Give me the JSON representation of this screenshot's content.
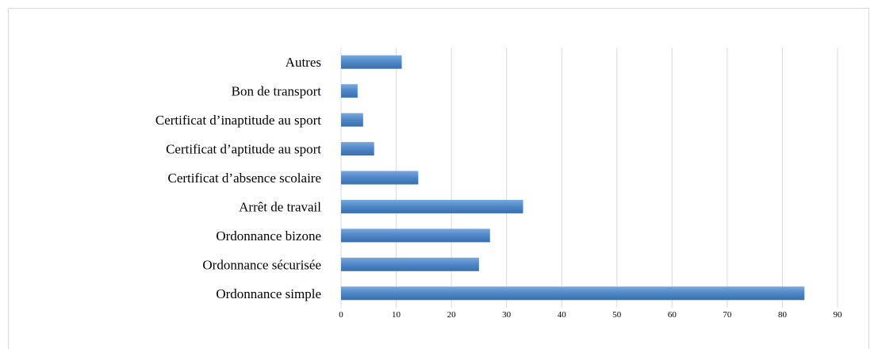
{
  "chart_data": {
    "type": "bar",
    "orientation": "horizontal",
    "categories": [
      "Autres",
      "Bon de transport",
      "Certificat d’inaptitude au sport",
      "Certificat d’aptitude au sport",
      "Certificat d’absence scolaire",
      "Arrêt de travail",
      "Ordonnance bizone",
      "Ordonnance sécurisée",
      "Ordonnance simple"
    ],
    "values": [
      11,
      3,
      4,
      6,
      14,
      33,
      27,
      25,
      84
    ],
    "xlim": [
      0,
      90
    ],
    "xticks": [
      "0",
      "10",
      "20",
      "30",
      "40",
      "50",
      "60",
      "70",
      "80",
      "90"
    ],
    "grid": true,
    "bar_color": "#4f86c6",
    "title": "",
    "xlabel": "",
    "ylabel": ""
  }
}
